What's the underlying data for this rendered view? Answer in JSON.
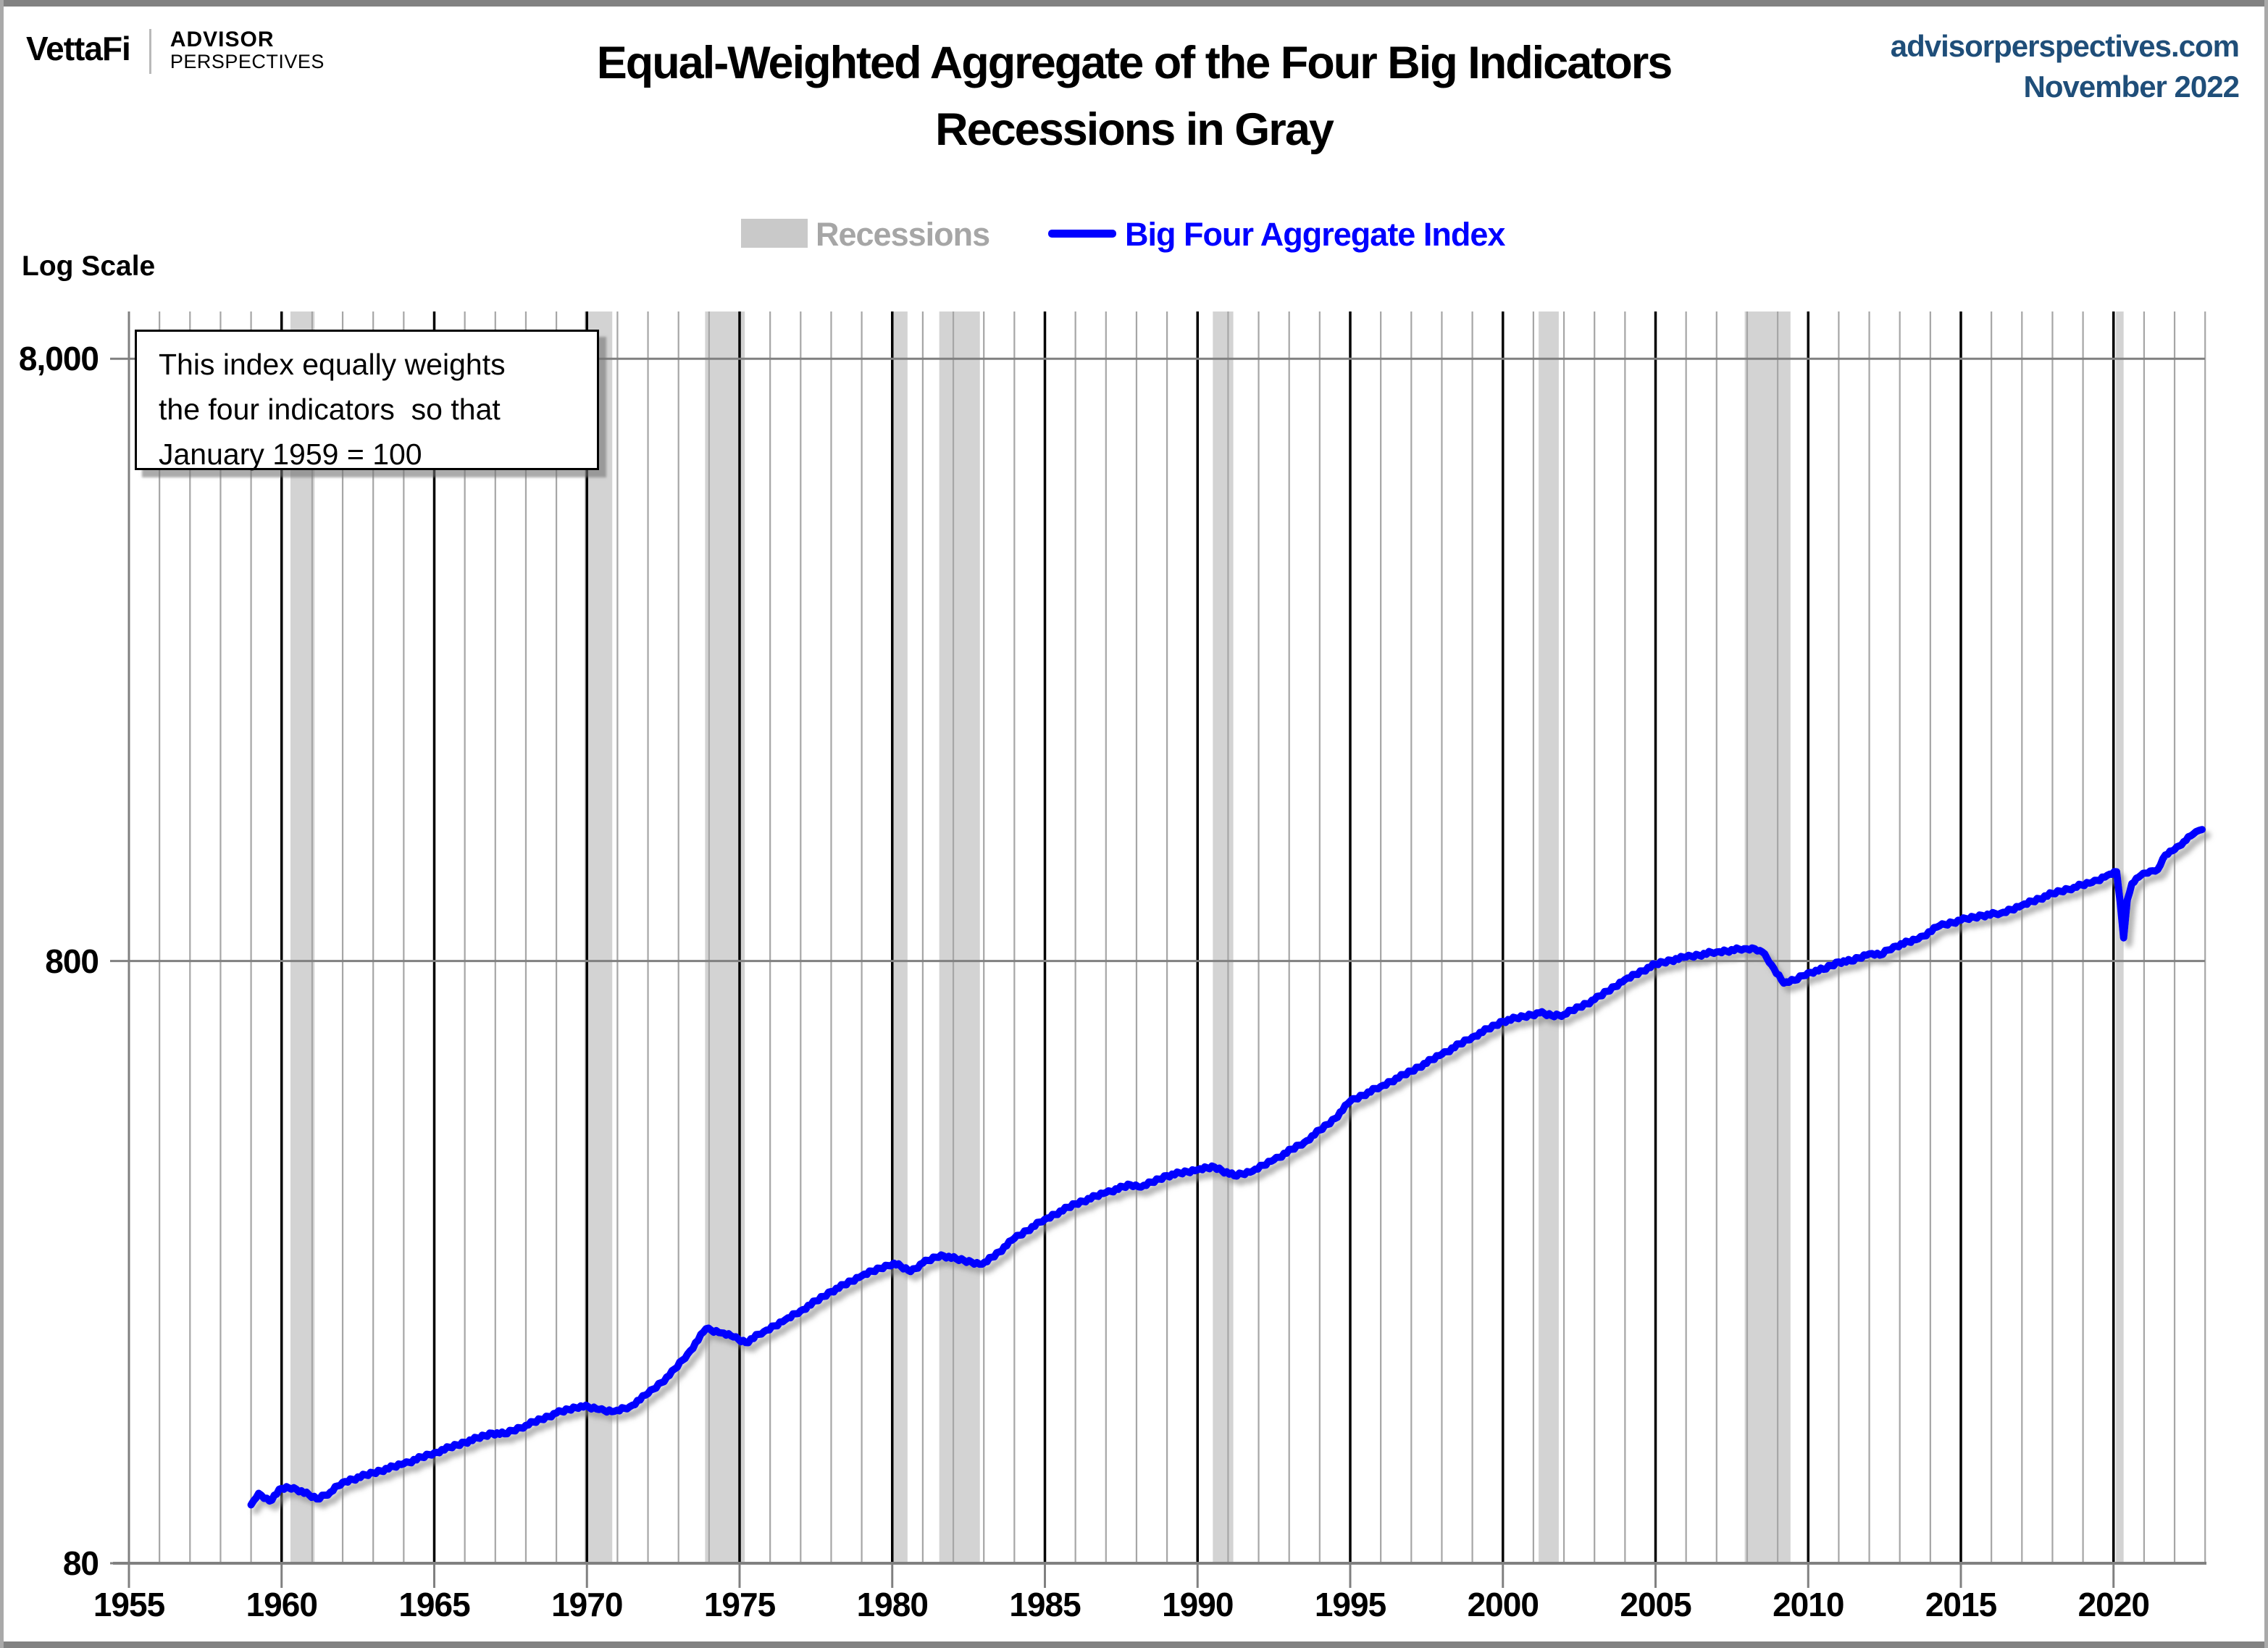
{
  "header": {
    "brand": "VettaFi",
    "brand_sub1": "ADVISOR",
    "brand_sub2": "PERSPECTIVES",
    "site": "advisorperspectives.com",
    "date": "November 2022",
    "title_line1": "Equal-Weighted Aggregate of the Four Big Indicators",
    "title_line2": "Recessions in Gray"
  },
  "legend": {
    "recessions_label": "Recessions",
    "series_label": "Big Four Aggregate Index"
  },
  "annotation": {
    "line1": "This index equally weights",
    "line2": "the four indicators  so that",
    "line3": "January 1959 = 100"
  },
  "axis": {
    "log_scale_label": "Log Scale",
    "y_ticks": [
      {
        "label": "8,000",
        "value": 8000
      },
      {
        "label": "800",
        "value": 800
      },
      {
        "label": "80",
        "value": 80
      }
    ],
    "x_ticks": [
      "1955",
      "1960",
      "1965",
      "1970",
      "1975",
      "1980",
      "1985",
      "1990",
      "1995",
      "2000",
      "2005",
      "2010",
      "2015",
      "2020"
    ]
  },
  "colors": {
    "line": "#0000ff",
    "recession_band": "#d3d3d3",
    "grid_minor": "#a6a6a6",
    "grid_major": "#000000",
    "grid_horizontal": "#808080",
    "axis": "#808080",
    "legend_text_gray": "#a6a6a6",
    "legend_swatch_gray": "#c9c9c9",
    "site_text": "#1f4e79",
    "title_text": "#000000"
  },
  "chart_data": {
    "type": "line",
    "title": "Equal-Weighted Aggregate of the Four Big Indicators",
    "subtitle": "Recessions in Gray",
    "xlabel": "",
    "ylabel": "Log Scale",
    "y_scale": "log",
    "xlim": [
      1955,
      2023.1
    ],
    "ylim": [
      80,
      9500
    ],
    "grid": true,
    "legend_position": "top-center",
    "note": "This index equally weights the four indicators so that January 1959 = 100",
    "recessions": [
      [
        1960.29,
        1961.08
      ],
      [
        1969.92,
        1970.83
      ],
      [
        1973.87,
        1975.17
      ],
      [
        1980.0,
        1980.5
      ],
      [
        1981.54,
        1982.87
      ],
      [
        1990.5,
        1991.17
      ],
      [
        2001.17,
        2001.83
      ],
      [
        2007.92,
        2009.42
      ],
      [
        2020.08,
        2020.33
      ]
    ],
    "series": [
      {
        "name": "Big Four Aggregate Index",
        "points": [
          [
            1959.0,
            100
          ],
          [
            1959.25,
            104.5
          ],
          [
            1959.6,
            101.5
          ],
          [
            1960.0,
            106.5
          ],
          [
            1960.4,
            106.8
          ],
          [
            1961.15,
            102.3
          ],
          [
            1961.6,
            105
          ],
          [
            1962.0,
            109
          ],
          [
            1963.0,
            113
          ],
          [
            1964.0,
            117
          ],
          [
            1965.0,
            122
          ],
          [
            1966.0,
            127
          ],
          [
            1966.9,
            131.5
          ],
          [
            1967.3,
            131.2
          ],
          [
            1968.0,
            135.5
          ],
          [
            1969.0,
            142
          ],
          [
            1969.8,
            146
          ],
          [
            1970.4,
            144
          ],
          [
            1970.9,
            143
          ],
          [
            1971.4,
            145.5
          ],
          [
            1972.0,
            153
          ],
          [
            1972.7,
            164
          ],
          [
            1973.3,
            178
          ],
          [
            1973.9,
            196
          ],
          [
            1974.4,
            193
          ],
          [
            1974.8,
            190
          ],
          [
            1975.2,
            186
          ],
          [
            1975.8,
            194
          ],
          [
            1976.5,
            203
          ],
          [
            1977.0,
            210
          ],
          [
            1978.0,
            226
          ],
          [
            1979.0,
            240
          ],
          [
            1979.6,
            247
          ],
          [
            1980.05,
            252
          ],
          [
            1980.6,
            244
          ],
          [
            1981.0,
            252
          ],
          [
            1981.6,
            260
          ],
          [
            1982.1,
            256
          ],
          [
            1982.6,
            253
          ],
          [
            1982.95,
            251
          ],
          [
            1983.5,
            263
          ],
          [
            1984.0,
            277
          ],
          [
            1985.0,
            298
          ],
          [
            1986.0,
            316
          ],
          [
            1987.0,
            330
          ],
          [
            1987.8,
            340
          ],
          [
            1988.15,
            337
          ],
          [
            1989.0,
            352
          ],
          [
            1990.0,
            360
          ],
          [
            1990.55,
            364
          ],
          [
            1991.2,
            352
          ],
          [
            1991.8,
            358
          ],
          [
            1992.5,
            374
          ],
          [
            1993.5,
            400
          ],
          [
            1994.5,
            438
          ],
          [
            1995.0,
            468
          ],
          [
            1996.0,
            495
          ],
          [
            1997.0,
            525
          ],
          [
            1998.0,
            560
          ],
          [
            1999.0,
            598
          ],
          [
            2000.0,
            635
          ],
          [
            2001.2,
            656
          ],
          [
            2001.6,
            649
          ],
          [
            2002.0,
            652
          ],
          [
            2003.0,
            690
          ],
          [
            2004.0,
            745
          ],
          [
            2005.0,
            790
          ],
          [
            2005.5,
            802
          ],
          [
            2006.0,
            812
          ],
          [
            2007.0,
            828
          ],
          [
            2007.9,
            838
          ],
          [
            2008.25,
            838
          ],
          [
            2008.5,
            828
          ],
          [
            2008.8,
            788
          ],
          [
            2009.2,
            735
          ],
          [
            2009.55,
            743
          ],
          [
            2010.0,
            765
          ],
          [
            2010.5,
            775
          ],
          [
            2011.0,
            797
          ],
          [
            2011.4,
            800
          ],
          [
            2012.0,
            822
          ],
          [
            2012.35,
            818
          ],
          [
            2012.8,
            845
          ],
          [
            2013.6,
            870
          ],
          [
            2014.3,
            915
          ],
          [
            2015.0,
            935
          ],
          [
            2015.7,
            952
          ],
          [
            2016.3,
            960
          ],
          [
            2017.0,
            990
          ],
          [
            2018.0,
            1035
          ],
          [
            2018.7,
            1060
          ],
          [
            2019.3,
            1080
          ],
          [
            2019.8,
            1110
          ],
          [
            2020.1,
            1125
          ],
          [
            2020.22,
            1000
          ],
          [
            2020.33,
            874
          ],
          [
            2020.45,
            1010
          ],
          [
            2020.6,
            1075
          ],
          [
            2020.9,
            1110
          ],
          [
            2021.2,
            1128
          ],
          [
            2021.45,
            1135
          ],
          [
            2021.7,
            1200
          ],
          [
            2022.0,
            1225
          ],
          [
            2022.3,
            1262
          ],
          [
            2022.6,
            1298
          ],
          [
            2022.8,
            1318
          ],
          [
            2022.9,
            1322
          ]
        ]
      }
    ]
  }
}
